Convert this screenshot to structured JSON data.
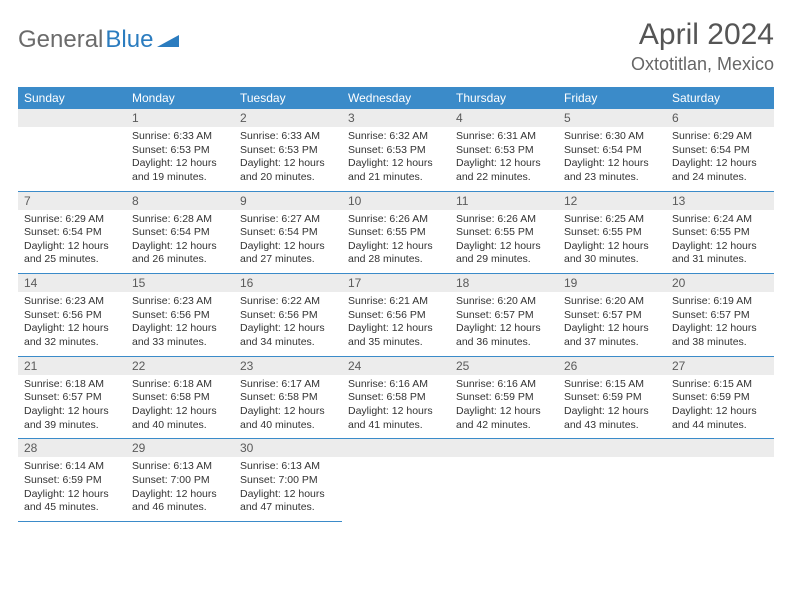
{
  "logo": {
    "part1": "General",
    "part2": "Blue"
  },
  "title": "April 2024",
  "location": "Oxtotitlan, Mexico",
  "colors": {
    "header_bg": "#3b8bc9",
    "header_text": "#ffffff",
    "daynum_bg": "#ececec",
    "border": "#3b8bc9",
    "body_text": "#333333",
    "title_text": "#555555"
  },
  "dayNames": [
    "Sunday",
    "Monday",
    "Tuesday",
    "Wednesday",
    "Thursday",
    "Friday",
    "Saturday"
  ],
  "weeks": [
    [
      null,
      {
        "n": "1",
        "sr": "6:33 AM",
        "ss": "6:53 PM",
        "dl": "12 hours and 19 minutes."
      },
      {
        "n": "2",
        "sr": "6:33 AM",
        "ss": "6:53 PM",
        "dl": "12 hours and 20 minutes."
      },
      {
        "n": "3",
        "sr": "6:32 AM",
        "ss": "6:53 PM",
        "dl": "12 hours and 21 minutes."
      },
      {
        "n": "4",
        "sr": "6:31 AM",
        "ss": "6:53 PM",
        "dl": "12 hours and 22 minutes."
      },
      {
        "n": "5",
        "sr": "6:30 AM",
        "ss": "6:54 PM",
        "dl": "12 hours and 23 minutes."
      },
      {
        "n": "6",
        "sr": "6:29 AM",
        "ss": "6:54 PM",
        "dl": "12 hours and 24 minutes."
      }
    ],
    [
      {
        "n": "7",
        "sr": "6:29 AM",
        "ss": "6:54 PM",
        "dl": "12 hours and 25 minutes."
      },
      {
        "n": "8",
        "sr": "6:28 AM",
        "ss": "6:54 PM",
        "dl": "12 hours and 26 minutes."
      },
      {
        "n": "9",
        "sr": "6:27 AM",
        "ss": "6:54 PM",
        "dl": "12 hours and 27 minutes."
      },
      {
        "n": "10",
        "sr": "6:26 AM",
        "ss": "6:55 PM",
        "dl": "12 hours and 28 minutes."
      },
      {
        "n": "11",
        "sr": "6:26 AM",
        "ss": "6:55 PM",
        "dl": "12 hours and 29 minutes."
      },
      {
        "n": "12",
        "sr": "6:25 AM",
        "ss": "6:55 PM",
        "dl": "12 hours and 30 minutes."
      },
      {
        "n": "13",
        "sr": "6:24 AM",
        "ss": "6:55 PM",
        "dl": "12 hours and 31 minutes."
      }
    ],
    [
      {
        "n": "14",
        "sr": "6:23 AM",
        "ss": "6:56 PM",
        "dl": "12 hours and 32 minutes."
      },
      {
        "n": "15",
        "sr": "6:23 AM",
        "ss": "6:56 PM",
        "dl": "12 hours and 33 minutes."
      },
      {
        "n": "16",
        "sr": "6:22 AM",
        "ss": "6:56 PM",
        "dl": "12 hours and 34 minutes."
      },
      {
        "n": "17",
        "sr": "6:21 AM",
        "ss": "6:56 PM",
        "dl": "12 hours and 35 minutes."
      },
      {
        "n": "18",
        "sr": "6:20 AM",
        "ss": "6:57 PM",
        "dl": "12 hours and 36 minutes."
      },
      {
        "n": "19",
        "sr": "6:20 AM",
        "ss": "6:57 PM",
        "dl": "12 hours and 37 minutes."
      },
      {
        "n": "20",
        "sr": "6:19 AM",
        "ss": "6:57 PM",
        "dl": "12 hours and 38 minutes."
      }
    ],
    [
      {
        "n": "21",
        "sr": "6:18 AM",
        "ss": "6:57 PM",
        "dl": "12 hours and 39 minutes."
      },
      {
        "n": "22",
        "sr": "6:18 AM",
        "ss": "6:58 PM",
        "dl": "12 hours and 40 minutes."
      },
      {
        "n": "23",
        "sr": "6:17 AM",
        "ss": "6:58 PM",
        "dl": "12 hours and 40 minutes."
      },
      {
        "n": "24",
        "sr": "6:16 AM",
        "ss": "6:58 PM",
        "dl": "12 hours and 41 minutes."
      },
      {
        "n": "25",
        "sr": "6:16 AM",
        "ss": "6:59 PM",
        "dl": "12 hours and 42 minutes."
      },
      {
        "n": "26",
        "sr": "6:15 AM",
        "ss": "6:59 PM",
        "dl": "12 hours and 43 minutes."
      },
      {
        "n": "27",
        "sr": "6:15 AM",
        "ss": "6:59 PM",
        "dl": "12 hours and 44 minutes."
      }
    ],
    [
      {
        "n": "28",
        "sr": "6:14 AM",
        "ss": "6:59 PM",
        "dl": "12 hours and 45 minutes."
      },
      {
        "n": "29",
        "sr": "6:13 AM",
        "ss": "7:00 PM",
        "dl": "12 hours and 46 minutes."
      },
      {
        "n": "30",
        "sr": "6:13 AM",
        "ss": "7:00 PM",
        "dl": "12 hours and 47 minutes."
      },
      null,
      null,
      null,
      null
    ]
  ],
  "labels": {
    "sunrise": "Sunrise:",
    "sunset": "Sunset:",
    "daylight": "Daylight:"
  }
}
